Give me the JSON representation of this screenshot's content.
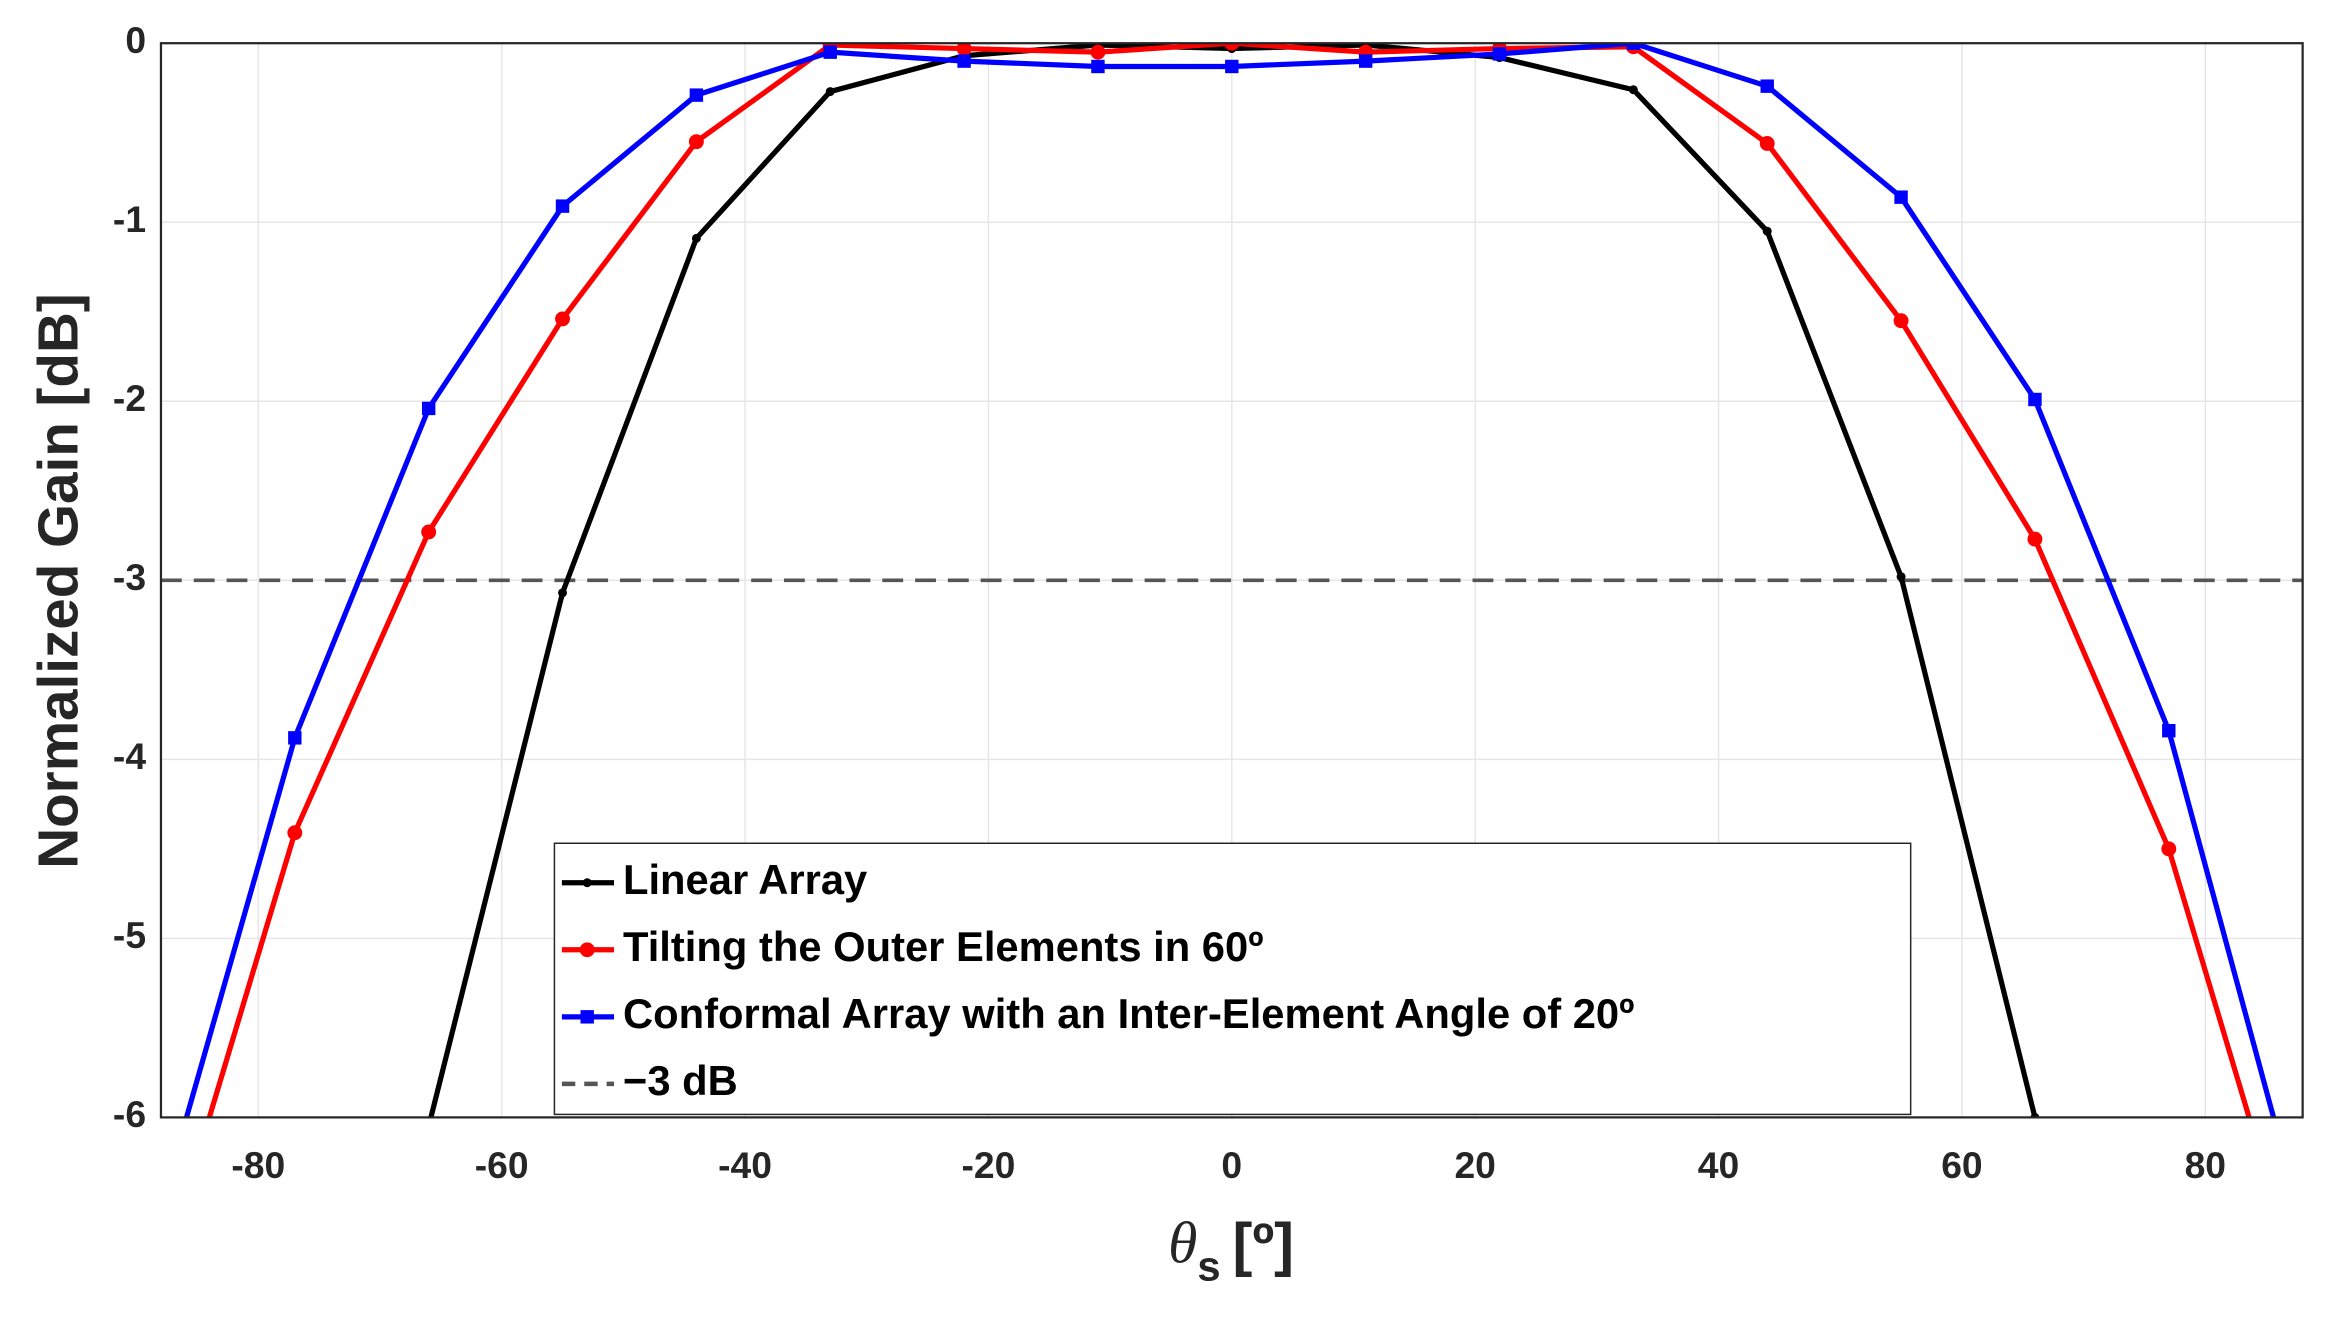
{
  "chart_data": {
    "type": "line",
    "xlabel": {
      "symbol": "θ",
      "subscript": "s",
      "unit": "[º]"
    },
    "ylabel": "Normalized Gain [dB]",
    "x": [
      -88,
      -77,
      -66,
      -55,
      -44,
      -33,
      -22,
      -11,
      0,
      11,
      22,
      33,
      44,
      55,
      66,
      77,
      88
    ],
    "series": [
      {
        "name": "Linear Array",
        "color": "#000000",
        "marker": "dot",
        "values": [
          null,
          null,
          -6.05,
          -3.07,
          -1.09,
          -0.27,
          -0.07,
          -0.01,
          -0.03,
          -0.01,
          -0.08,
          -0.26,
          -1.05,
          -2.98,
          -6.0,
          null,
          null
        ]
      },
      {
        "name": "Tilting the Outer Elements in 60º",
        "color": "#ff0000",
        "marker": "circle",
        "values": [
          -6.9,
          -4.41,
          -2.73,
          -1.54,
          -0.55,
          -0.01,
          -0.03,
          -0.05,
          0,
          -0.05,
          -0.03,
          -0.02,
          -0.56,
          -1.55,
          -2.77,
          -4.5,
          -7.0
        ]
      },
      {
        "name": "Conformal Array with an Inter-Element Angle of 20º",
        "color": "#0000ff",
        "marker": "square",
        "values": [
          -6.5,
          -3.88,
          -2.04,
          -0.91,
          -0.29,
          -0.05,
          -0.1,
          -0.13,
          -0.13,
          -0.1,
          -0.06,
          0,
          -0.24,
          -0.86,
          -1.99,
          -3.84,
          -6.6
        ]
      }
    ],
    "reference_line": {
      "name": "−3 dB",
      "value": -3,
      "color": "#555555"
    },
    "xlim": [
      -88,
      88
    ],
    "xticks": [
      -80,
      -60,
      -40,
      -20,
      0,
      20,
      40,
      60,
      80
    ],
    "ylim": [
      -6,
      0
    ],
    "yticks": [
      0,
      -1,
      -2,
      -3,
      -4,
      -5,
      -6
    ],
    "grid": true,
    "legend": "lower center"
  }
}
